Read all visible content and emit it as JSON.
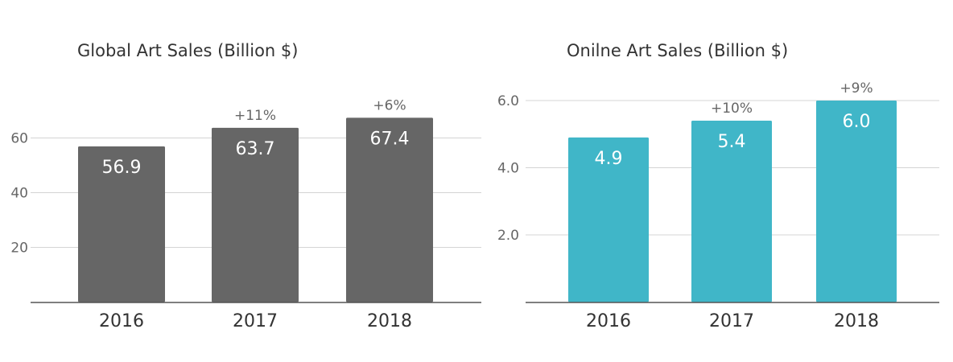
{
  "chart_data": [
    {
      "type": "bar",
      "title": "Global Art Sales (Billion $)",
      "categories": [
        "2016",
        "2017",
        "2018"
      ],
      "values": [
        56.9,
        63.7,
        67.4
      ],
      "value_labels": [
        "56.9",
        "63.7",
        "67.4"
      ],
      "annotations": [
        "",
        "+11%",
        "+6%"
      ],
      "yticks": [
        20,
        40,
        60
      ],
      "ytick_labels": [
        "20",
        "40",
        "60"
      ],
      "ylim": [
        0,
        70
      ],
      "xlabel": "",
      "ylabel": "",
      "grid": true,
      "color": "#666666"
    },
    {
      "type": "bar",
      "title": "Onilne Art Sales (Billion $)",
      "categories": [
        "2016",
        "2017",
        "2018"
      ],
      "values": [
        4.9,
        5.4,
        6.0
      ],
      "value_labels": [
        "4.9",
        "5.4",
        "6.0"
      ],
      "annotations": [
        "",
        "+10%",
        "+9%"
      ],
      "yticks": [
        2.0,
        4.0,
        6.0
      ],
      "ytick_labels": [
        "2.0",
        "4.0",
        "6.0"
      ],
      "ylim": [
        0,
        6.0
      ],
      "xlabel": "",
      "ylabel": "",
      "grid": true,
      "color": "#40B6C8"
    }
  ]
}
